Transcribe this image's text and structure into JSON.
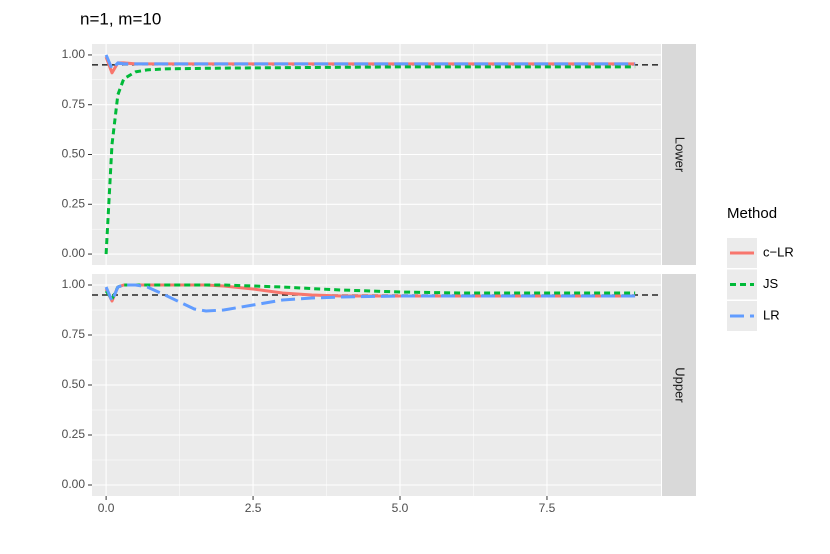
{
  "chart_data": [
    {
      "type": "line",
      "title": "n=1, m=10",
      "facet": "Lower",
      "legend_title": "Method",
      "x": [
        0,
        0.1,
        0.2,
        0.3,
        0.5,
        0.7,
        1,
        1.5,
        1.7,
        2,
        2.5,
        3,
        3.5,
        4,
        5,
        6,
        7,
        8,
        9
      ],
      "series": [
        {
          "name": "c−LR",
          "color": "#F8766D",
          "dash": "solid",
          "values": [
            0.99,
            0.91,
            0.96,
            0.96,
            0.955,
            0.955,
            0.955,
            0.955,
            0.955,
            0.955,
            0.955,
            0.955,
            0.955,
            0.955,
            0.955,
            0.955,
            0.955,
            0.955,
            0.955
          ]
        },
        {
          "name": "JS",
          "color": "#00BA38",
          "dash": "short",
          "values": [
            0,
            0.55,
            0.8,
            0.88,
            0.915,
            0.925,
            0.93,
            0.932,
            0.933,
            0.934,
            0.935,
            0.936,
            0.937,
            0.938,
            0.94,
            0.94,
            0.94,
            0.94,
            0.94
          ]
        },
        {
          "name": "LR",
          "color": "#619CFF",
          "dash": "long",
          "values": [
            1.0,
            0.93,
            0.96,
            0.955,
            0.955,
            0.955,
            0.955,
            0.955,
            0.955,
            0.955,
            0.955,
            0.955,
            0.955,
            0.955,
            0.955,
            0.955,
            0.955,
            0.955,
            0.955
          ]
        }
      ],
      "hline": 0.95,
      "xlim": [
        -0.24,
        9.44
      ],
      "xticks": [
        {
          "value": 0,
          "label": "0.0"
        },
        2.5,
        {
          "value": 5,
          "label": "5.0"
        },
        7.5
      ],
      "ylim": [
        -0.055,
        1.055
      ],
      "yticks": [
        {
          "value": 0,
          "label": "0.00"
        },
        0.25,
        {
          "value": 0.5,
          "label": "0.50"
        },
        0.75,
        {
          "value": 1,
          "label": "1.00"
        }
      ],
      "grid": true
    },
    {
      "type": "line",
      "facet": "Upper",
      "x": [
        0,
        0.1,
        0.2,
        0.3,
        0.5,
        0.7,
        1,
        1.5,
        1.7,
        2,
        2.5,
        3,
        3.5,
        4,
        5,
        6,
        7,
        8,
        9
      ],
      "series": [
        {
          "name": "c−LR",
          "color": "#F8766D",
          "dash": "solid",
          "values": [
            0.98,
            0.92,
            0.99,
            1.0,
            1.0,
            1.0,
            1.0,
            1.0,
            1.0,
            0.995,
            0.98,
            0.96,
            0.95,
            0.945,
            0.945,
            0.945,
            0.945,
            0.945,
            0.945
          ]
        },
        {
          "name": "JS",
          "color": "#00BA38",
          "dash": "short",
          "values": [
            0.97,
            0.93,
            0.99,
            1.0,
            1.0,
            1.0,
            1.0,
            1.0,
            1.0,
            1.0,
            0.995,
            0.99,
            0.982,
            0.975,
            0.965,
            0.96,
            0.96,
            0.96,
            0.96
          ]
        },
        {
          "name": "LR",
          "color": "#619CFF",
          "dash": "long",
          "values": [
            0.99,
            0.92,
            0.99,
            1.0,
            1.0,
            0.99,
            0.95,
            0.88,
            0.87,
            0.875,
            0.9,
            0.925,
            0.935,
            0.94,
            0.945,
            0.945,
            0.945,
            0.945,
            0.945
          ]
        }
      ],
      "hline": 0.95,
      "xlim": [
        -0.24,
        9.44
      ],
      "xticks": [
        {
          "value": 0,
          "label": "0.0"
        },
        2.5,
        {
          "value": 5,
          "label": "5.0"
        },
        7.5
      ],
      "ylim": [
        -0.055,
        1.055
      ],
      "yticks": [
        {
          "value": 0,
          "label": "0.00"
        },
        0.25,
        {
          "value": 0.5,
          "label": "0.50"
        },
        0.75,
        {
          "value": 1,
          "label": "1.00"
        }
      ],
      "grid": true
    }
  ]
}
